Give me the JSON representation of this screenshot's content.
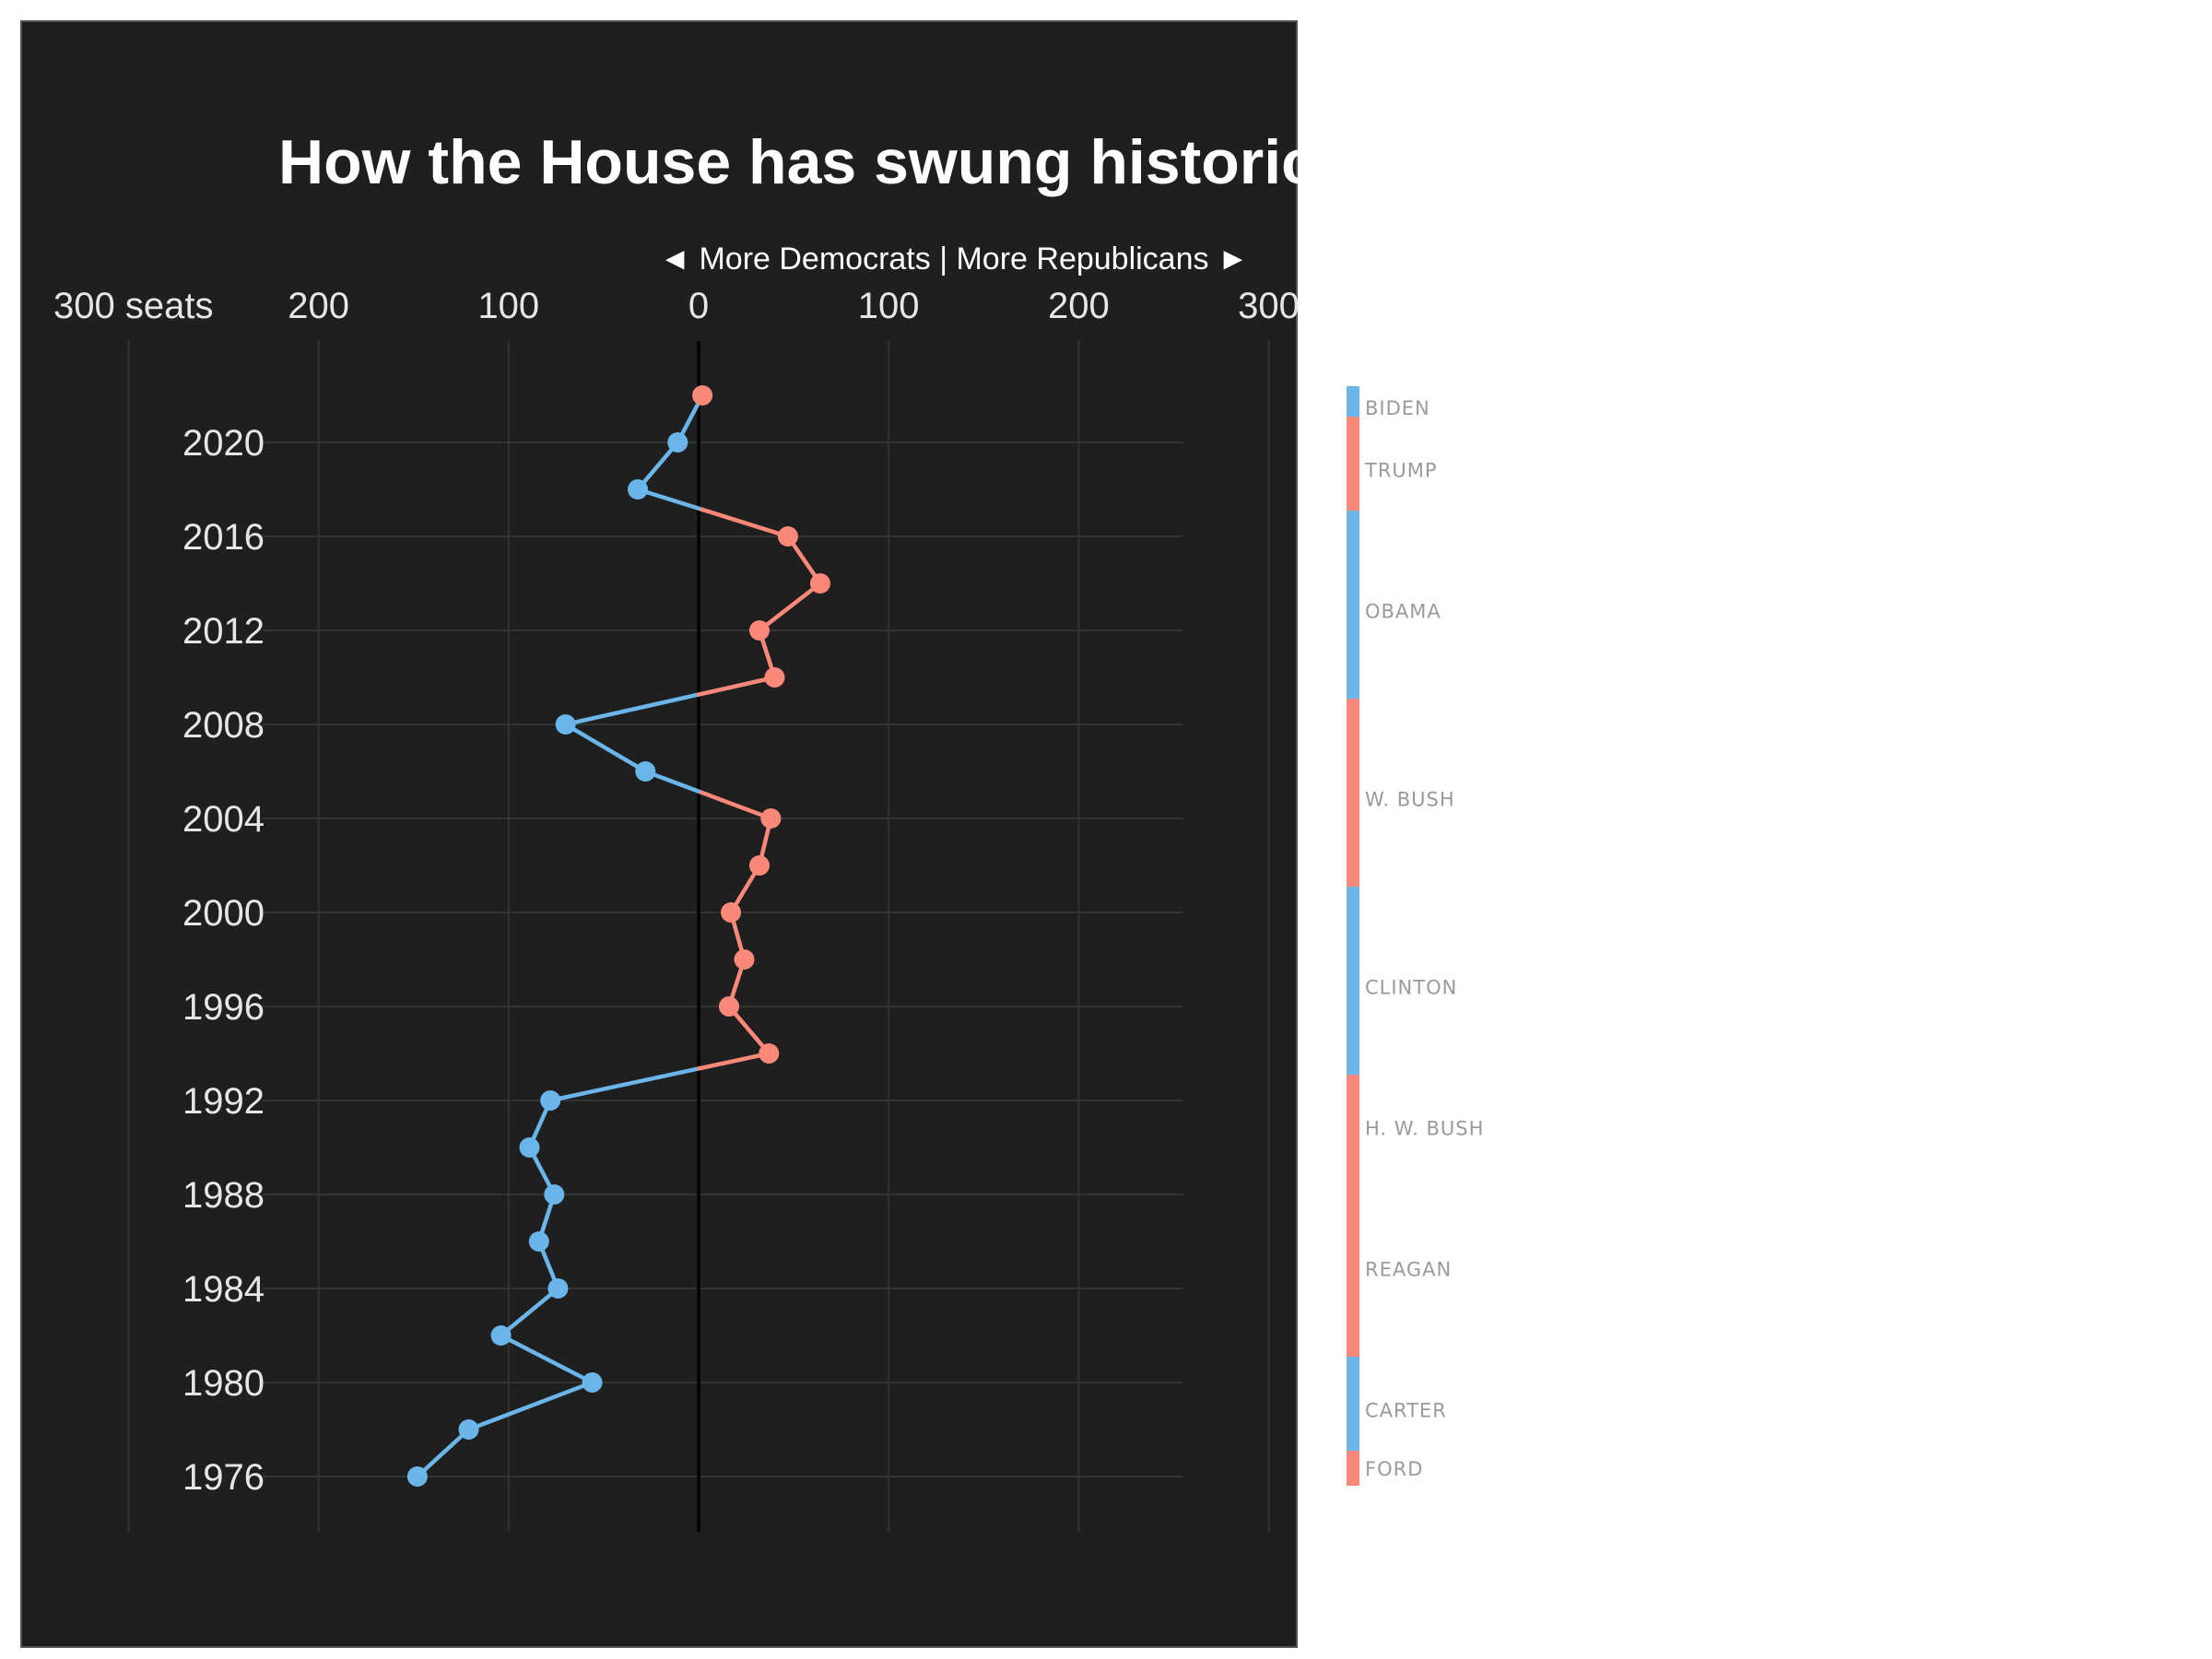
{
  "chart_data": {
    "type": "line",
    "title": "How the House has swung historically",
    "direction_label": "◄ More Democrats | More Republicans ►",
    "x_tick_labels": [
      "300 seats",
      "200",
      "100",
      "0",
      "100",
      "200",
      "300"
    ],
    "x_tick_values": [
      -300,
      -200,
      -100,
      0,
      100,
      200,
      300
    ],
    "xlim": [
      -300,
      385
    ],
    "y_tick_labels": [
      "2020",
      "2016",
      "2012",
      "2008",
      "2004",
      "2000",
      "1996",
      "1992",
      "1988",
      "1984",
      "1980",
      "1976"
    ],
    "y_tick_values": [
      2020,
      2016,
      2012,
      2008,
      2004,
      2000,
      1996,
      1992,
      1988,
      1984,
      1980,
      1976
    ],
    "ylim": [
      1974,
      2024.5
    ],
    "grid": true,
    "series": [
      {
        "x": [
          1976,
          1978,
          1980,
          1982,
          1984,
          1986,
          1988,
          1990,
          1992,
          1994,
          1996,
          1998,
          2000,
          2002,
          2004,
          2006,
          2008,
          2010,
          2012,
          2014,
          2016,
          2018,
          2020,
          2022
        ],
        "values": [
          -148,
          -121,
          -56,
          -104,
          -74,
          -84,
          -76,
          -89,
          -78,
          37,
          16,
          24,
          17,
          32,
          38,
          -28,
          -70,
          40,
          32,
          64,
          47,
          -32,
          -11,
          2
        ]
      }
    ],
    "colors": {
      "democrat": "#6ab5ea",
      "republican": "#fb8878",
      "zero_line": "#000000",
      "panel": "#1f1f1f"
    },
    "presidents": [
      {
        "label": "BIDEN",
        "party": "D",
        "start": 2021,
        "end": 2022
      },
      {
        "label": "TRUMP",
        "party": "R",
        "start": 2017,
        "end": 2020.7
      },
      {
        "label": "OBAMA",
        "party": "D",
        "start": 2009,
        "end": 2016.7
      },
      {
        "label": "W. BUSH",
        "party": "R",
        "start": 2001,
        "end": 2008.7
      },
      {
        "label": "CLINTON",
        "party": "D",
        "start": 1993,
        "end": 2000.7
      },
      {
        "label": "H. W. BUSH",
        "party": "R",
        "start": 1989,
        "end": 1992.7
      },
      {
        "label": "REAGAN",
        "party": "R",
        "start": 1981,
        "end": 1988.7
      },
      {
        "label": "CARTER",
        "party": "D",
        "start": 1977,
        "end": 1980.7
      },
      {
        "label": "FORD",
        "party": "R",
        "start": 1976,
        "end": 1976.7
      }
    ]
  }
}
